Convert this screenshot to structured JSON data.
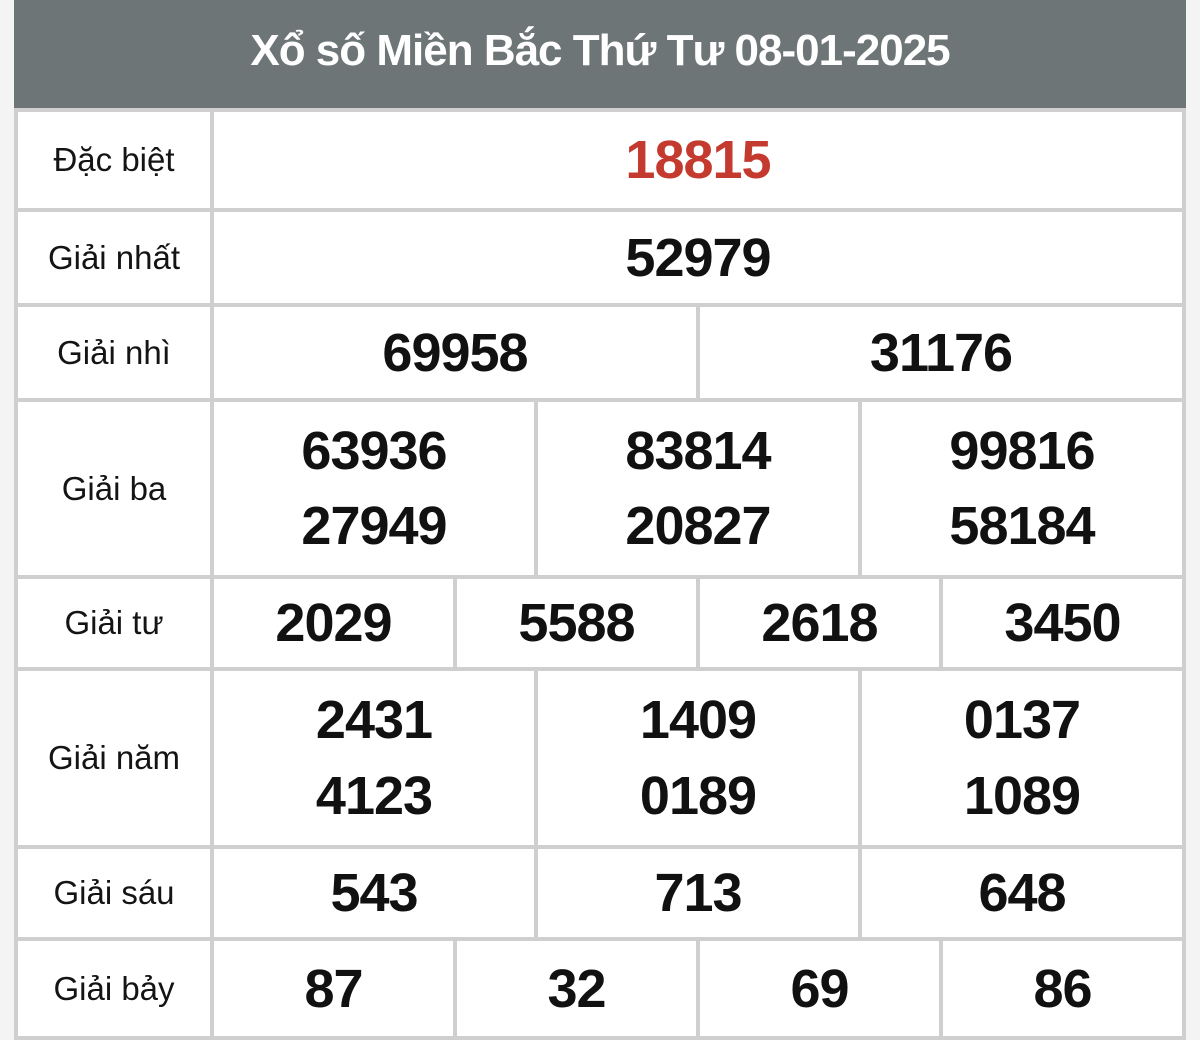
{
  "title": "Xổ số Miền Bắc Thứ Tư 08-01-2025",
  "colors": {
    "header_bg": "#6d7577",
    "header_text": "#ffffff",
    "special_number": "#c43a2e",
    "number_color": "#111111",
    "label_color": "#141414",
    "border": "#cfcfcf",
    "cell_bg": "#ffffff",
    "page_bg": "#f4f4f4"
  },
  "rows": [
    {
      "label": "Đặc biệt",
      "cells": [
        [
          "18815"
        ]
      ]
    },
    {
      "label": "Giải nhất",
      "cells": [
        [
          "52979"
        ]
      ]
    },
    {
      "label": "Giải nhì",
      "cells": [
        [
          "69958"
        ],
        [
          "31176"
        ]
      ]
    },
    {
      "label": "Giải ba",
      "cells": [
        [
          "63936",
          "27949"
        ],
        [
          "83814",
          "20827"
        ],
        [
          "99816",
          "58184"
        ]
      ]
    },
    {
      "label": "Giải tư",
      "cells": [
        [
          "2029"
        ],
        [
          "5588"
        ],
        [
          "2618"
        ],
        [
          "3450"
        ]
      ]
    },
    {
      "label": "Giải năm",
      "cells": [
        [
          "2431",
          "4123"
        ],
        [
          "1409",
          "0189"
        ],
        [
          "0137",
          "1089"
        ]
      ]
    },
    {
      "label": "Giải sáu",
      "cells": [
        [
          "543"
        ],
        [
          "713"
        ],
        [
          "648"
        ]
      ]
    },
    {
      "label": "Giải bảy",
      "cells": [
        [
          "87"
        ],
        [
          "32"
        ],
        [
          "69"
        ],
        [
          "86"
        ]
      ]
    }
  ]
}
